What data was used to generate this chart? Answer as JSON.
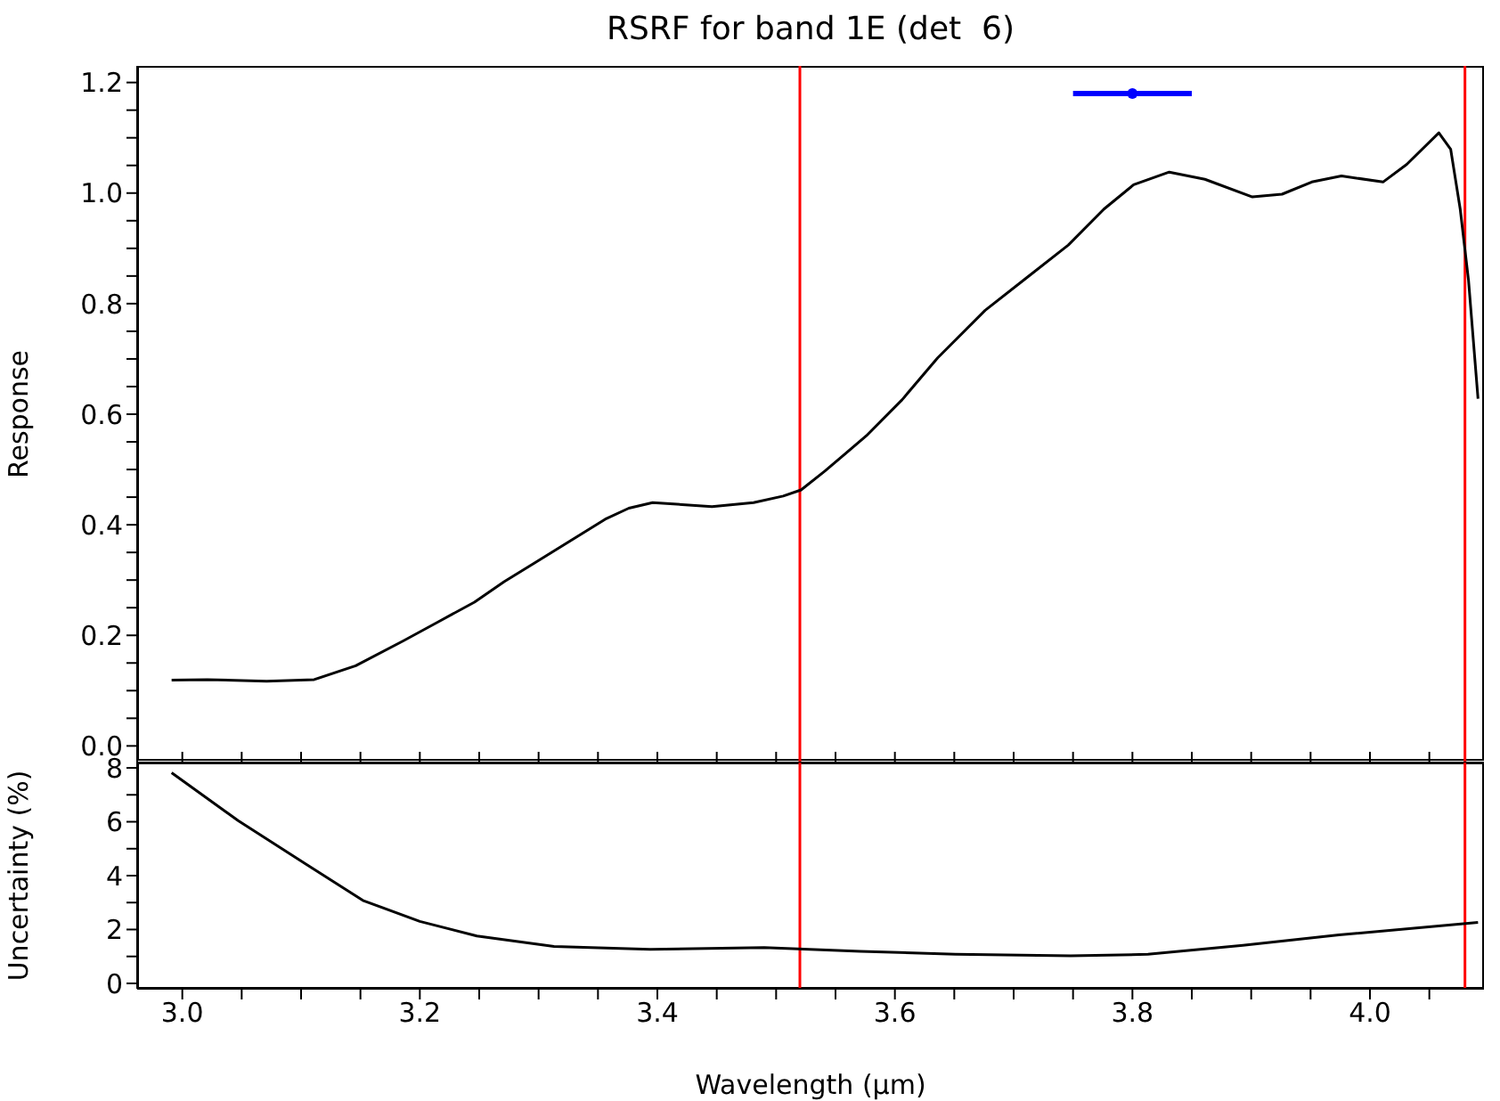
{
  "chart_data": [
    {
      "type": "line",
      "title": "RSRF for band 1E (det  6)",
      "ylabel": "Response",
      "xlim": [
        2.962,
        4.096
      ],
      "ylim": [
        -0.03,
        1.23
      ],
      "xticks": [
        {
          "value": 3.0,
          "label": null
        },
        {
          "value": 3.05,
          "label": null
        },
        {
          "value": 3.1,
          "label": null
        },
        {
          "value": 3.15,
          "label": null
        },
        {
          "value": 3.2,
          "label": null
        },
        {
          "value": 3.25,
          "label": null
        },
        {
          "value": 3.3,
          "label": null
        },
        {
          "value": 3.35,
          "label": null
        },
        {
          "value": 3.4,
          "label": null
        },
        {
          "value": 3.45,
          "label": null
        },
        {
          "value": 3.5,
          "label": null
        },
        {
          "value": 3.55,
          "label": null
        },
        {
          "value": 3.6,
          "label": null
        },
        {
          "value": 3.65,
          "label": null
        },
        {
          "value": 3.7,
          "label": null
        },
        {
          "value": 3.75,
          "label": null
        },
        {
          "value": 3.8,
          "label": null
        },
        {
          "value": 3.85,
          "label": null
        },
        {
          "value": 3.9,
          "label": null
        },
        {
          "value": 3.95,
          "label": null
        },
        {
          "value": 4.0,
          "label": null
        },
        {
          "value": 4.05,
          "label": null
        }
      ],
      "yticks": [
        {
          "value": 0,
          "label": "0.0"
        },
        {
          "value": 0.05,
          "label": null
        },
        {
          "value": 0.1,
          "label": null
        },
        {
          "value": 0.15,
          "label": null
        },
        {
          "value": 0.2,
          "label": "0.2"
        },
        {
          "value": 0.25,
          "label": null
        },
        {
          "value": 0.3,
          "label": null
        },
        {
          "value": 0.35,
          "label": null
        },
        {
          "value": 0.4,
          "label": "0.4"
        },
        {
          "value": 0.45,
          "label": null
        },
        {
          "value": 0.5,
          "label": null
        },
        {
          "value": 0.55,
          "label": null
        },
        {
          "value": 0.6,
          "label": "0.6"
        },
        {
          "value": 0.65,
          "label": null
        },
        {
          "value": 0.7,
          "label": null
        },
        {
          "value": 0.75,
          "label": null
        },
        {
          "value": 0.8,
          "label": "0.8"
        },
        {
          "value": 0.85,
          "label": null
        },
        {
          "value": 0.9,
          "label": null
        },
        {
          "value": 0.95,
          "label": null
        },
        {
          "value": 1.0,
          "label": "1.0"
        },
        {
          "value": 1.05,
          "label": null
        },
        {
          "value": 1.1,
          "label": null
        },
        {
          "value": 1.15,
          "label": null
        },
        {
          "value": 1.2,
          "label": "1.2"
        }
      ],
      "tick_labels": "y",
      "grid": false,
      "legend": false,
      "ref_lines": [
        {
          "axis": "x",
          "value": 3.52,
          "color": "#ff0000"
        },
        {
          "axis": "x",
          "value": 4.08,
          "color": "#ff0000"
        }
      ],
      "series": [
        {
          "type": "line",
          "color": "#000000",
          "x": [
            2.991,
            3.021,
            3.071,
            3.111,
            3.146,
            3.186,
            3.216,
            3.246,
            3.271,
            3.296,
            3.326,
            3.356,
            3.376,
            3.396,
            3.446,
            3.481,
            3.506,
            3.521,
            3.541,
            3.576,
            3.606,
            3.636,
            3.676,
            3.711,
            3.746,
            3.776,
            3.801,
            3.831,
            3.861,
            3.901,
            3.926,
            3.951,
            3.976,
            4.011,
            4.031,
            4.058,
            4.068,
            4.076,
            4.083,
            4.091
          ],
          "values": [
            0.119,
            0.12,
            0.117,
            0.12,
            0.145,
            0.19,
            0.225,
            0.26,
            0.297,
            0.33,
            0.37,
            0.41,
            0.43,
            0.44,
            0.433,
            0.44,
            0.452,
            0.463,
            0.497,
            0.561,
            0.626,
            0.702,
            0.788,
            0.847,
            0.906,
            0.971,
            1.015,
            1.038,
            1.025,
            0.993,
            0.998,
            1.02,
            1.031,
            1.02,
            1.052,
            1.109,
            1.079,
            0.971,
            0.842,
            0.628
          ]
        },
        {
          "type": "scatter",
          "color": "#0000ff",
          "x": [
            3.8
          ],
          "values": [
            1.18
          ],
          "xerrors": [
            0.05
          ],
          "marker": "circle"
        }
      ]
    },
    {
      "type": "line",
      "xlabel": "Wavelength (μm)",
      "ylabel": "Uncertainty (%)",
      "xlim": [
        2.962,
        4.096
      ],
      "ylim": [
        -0.2,
        8.2
      ],
      "xticks": [
        {
          "value": 3.0,
          "label": "3.0"
        },
        {
          "value": 3.05,
          "label": null
        },
        {
          "value": 3.1,
          "label": null
        },
        {
          "value": 3.15,
          "label": null
        },
        {
          "value": 3.2,
          "label": "3.2"
        },
        {
          "value": 3.25,
          "label": null
        },
        {
          "value": 3.3,
          "label": null
        },
        {
          "value": 3.35,
          "label": null
        },
        {
          "value": 3.4,
          "label": "3.4"
        },
        {
          "value": 3.45,
          "label": null
        },
        {
          "value": 3.5,
          "label": null
        },
        {
          "value": 3.55,
          "label": null
        },
        {
          "value": 3.6,
          "label": "3.6"
        },
        {
          "value": 3.65,
          "label": null
        },
        {
          "value": 3.7,
          "label": null
        },
        {
          "value": 3.75,
          "label": null
        },
        {
          "value": 3.8,
          "label": "3.8"
        },
        {
          "value": 3.85,
          "label": null
        },
        {
          "value": 3.9,
          "label": null
        },
        {
          "value": 3.95,
          "label": null
        },
        {
          "value": 4.0,
          "label": "4.0"
        },
        {
          "value": 4.05,
          "label": null
        }
      ],
      "yticks": [
        0,
        {
          "value": 1,
          "label": null
        },
        2,
        {
          "value": 3,
          "label": null
        },
        4,
        {
          "value": 5,
          "label": null
        },
        6,
        {
          "value": 7,
          "label": null
        },
        8
      ],
      "grid": false,
      "legend": false,
      "ref_lines": [
        {
          "axis": "x",
          "value": 3.52,
          "color": "#ff0000"
        },
        {
          "axis": "x",
          "value": 4.08,
          "color": "#ff0000"
        }
      ],
      "series": [
        {
          "type": "line",
          "color": "#000000",
          "x": [
            2.991,
            3.047,
            3.104,
            3.152,
            3.2,
            3.248,
            3.313,
            3.394,
            3.49,
            3.571,
            3.651,
            3.748,
            3.813,
            3.893,
            3.974,
            4.091
          ],
          "values": [
            7.82,
            6.04,
            4.43,
            3.08,
            2.3,
            1.76,
            1.37,
            1.26,
            1.33,
            1.19,
            1.08,
            1.02,
            1.08,
            1.41,
            1.8,
            2.26
          ]
        }
      ]
    }
  ]
}
